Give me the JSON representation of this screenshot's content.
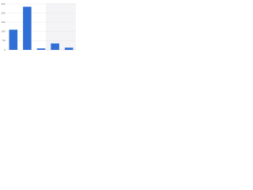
{
  "chart_data": {
    "type": "bar",
    "categories": [
      null,
      null,
      null,
      null,
      null
    ],
    "values": [
      110,
      235,
      8,
      35,
      12
    ],
    "color": "#2f6fd6",
    "ylim": [
      0,
      250
    ],
    "yticks": [
      0,
      50,
      100,
      150,
      200,
      250
    ],
    "grid": true
  }
}
